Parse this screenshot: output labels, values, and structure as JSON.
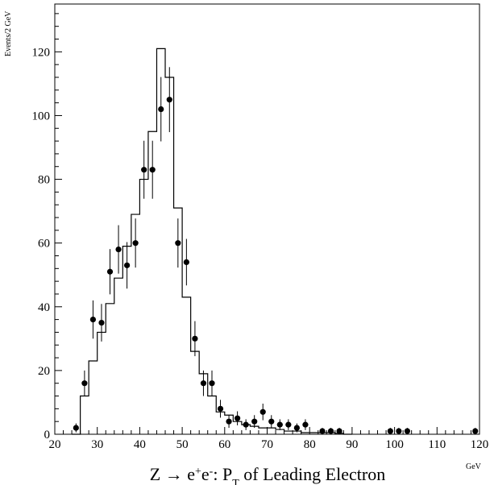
{
  "chart_data": {
    "type": "histogram",
    "title": "Z → e+e-: PT of Leading Electron",
    "title_parts": {
      "prefix": "Z → e",
      "sup1": "+",
      "mid1": "e",
      "sup2": "-",
      "mid2": ": P",
      "sub": "T",
      "suffix": " of Leading Electron"
    },
    "xlabel": "GeV",
    "ylabel": "Events/2 GeV",
    "xlim": [
      20,
      120
    ],
    "ylim": [
      0,
      135
    ],
    "x_ticks": [
      20,
      30,
      40,
      50,
      60,
      70,
      80,
      90,
      100,
      110,
      120
    ],
    "y_ticks": [
      0,
      20,
      40,
      60,
      80,
      100,
      120
    ],
    "grid": false,
    "series": [
      {
        "kind": "step-histogram",
        "bin_width": 2,
        "bins": [
          {
            "x": 24,
            "y": 0
          },
          {
            "x": 26,
            "y": 12
          },
          {
            "x": 28,
            "y": 23
          },
          {
            "x": 30,
            "y": 32
          },
          {
            "x": 32,
            "y": 41
          },
          {
            "x": 34,
            "y": 49
          },
          {
            "x": 36,
            "y": 59
          },
          {
            "x": 38,
            "y": 69
          },
          {
            "x": 40,
            "y": 80
          },
          {
            "x": 42,
            "y": 95
          },
          {
            "x": 44,
            "y": 121
          },
          {
            "x": 46,
            "y": 112
          },
          {
            "x": 48,
            "y": 71
          },
          {
            "x": 50,
            "y": 43
          },
          {
            "x": 52,
            "y": 26
          },
          {
            "x": 54,
            "y": 19
          },
          {
            "x": 56,
            "y": 12
          },
          {
            "x": 58,
            "y": 7
          },
          {
            "x": 60,
            "y": 6
          },
          {
            "x": 62,
            "y": 4
          },
          {
            "x": 64,
            "y": 3
          },
          {
            "x": 66,
            "y": 2.5
          },
          {
            "x": 68,
            "y": 2
          },
          {
            "x": 70,
            "y": 2
          },
          {
            "x": 72,
            "y": 1.5
          },
          {
            "x": 74,
            "y": 1
          },
          {
            "x": 76,
            "y": 1
          },
          {
            "x": 78,
            "y": 0.5
          },
          {
            "x": 80,
            "y": 0.5
          },
          {
            "x": 82,
            "y": 0.5
          },
          {
            "x": 84,
            "y": 0.5
          },
          {
            "x": 86,
            "y": 0.3
          },
          {
            "x": 88,
            "y": 0
          }
        ]
      },
      {
        "kind": "points-with-errors",
        "points": [
          {
            "x": 25,
            "y": 2,
            "err": 1.4
          },
          {
            "x": 27,
            "y": 16,
            "err": 4
          },
          {
            "x": 29,
            "y": 36,
            "err": 6
          },
          {
            "x": 31,
            "y": 35,
            "err": 5.9
          },
          {
            "x": 33,
            "y": 51,
            "err": 7.1
          },
          {
            "x": 35,
            "y": 58,
            "err": 7.6
          },
          {
            "x": 37,
            "y": 53,
            "err": 7.3
          },
          {
            "x": 39,
            "y": 60,
            "err": 7.7
          },
          {
            "x": 41,
            "y": 83,
            "err": 9.1
          },
          {
            "x": 43,
            "y": 83,
            "err": 9.1
          },
          {
            "x": 45,
            "y": 102,
            "err": 10.1
          },
          {
            "x": 47,
            "y": 105,
            "err": 10.2
          },
          {
            "x": 49,
            "y": 60,
            "err": 7.7
          },
          {
            "x": 51,
            "y": 54,
            "err": 7.3
          },
          {
            "x": 53,
            "y": 30,
            "err": 5.5
          },
          {
            "x": 55,
            "y": 16,
            "err": 4
          },
          {
            "x": 57,
            "y": 16,
            "err": 4
          },
          {
            "x": 59,
            "y": 8,
            "err": 2.8
          },
          {
            "x": 61,
            "y": 4,
            "err": 2
          },
          {
            "x": 63,
            "y": 5,
            "err": 2.2
          },
          {
            "x": 65,
            "y": 3,
            "err": 1.7
          },
          {
            "x": 67,
            "y": 4,
            "err": 2
          },
          {
            "x": 69,
            "y": 7,
            "err": 2.6
          },
          {
            "x": 71,
            "y": 4,
            "err": 2
          },
          {
            "x": 73,
            "y": 3,
            "err": 1.7
          },
          {
            "x": 75,
            "y": 3,
            "err": 1.7
          },
          {
            "x": 77,
            "y": 2,
            "err": 1.4
          },
          {
            "x": 79,
            "y": 3,
            "err": 1.7
          },
          {
            "x": 83,
            "y": 1,
            "err": 1
          },
          {
            "x": 85,
            "y": 1,
            "err": 1
          },
          {
            "x": 87,
            "y": 1,
            "err": 1
          },
          {
            "x": 99,
            "y": 1,
            "err": 1
          },
          {
            "x": 101,
            "y": 1,
            "err": 1
          },
          {
            "x": 103,
            "y": 1,
            "err": 1
          },
          {
            "x": 119,
            "y": 1,
            "err": 1
          }
        ]
      }
    ]
  }
}
